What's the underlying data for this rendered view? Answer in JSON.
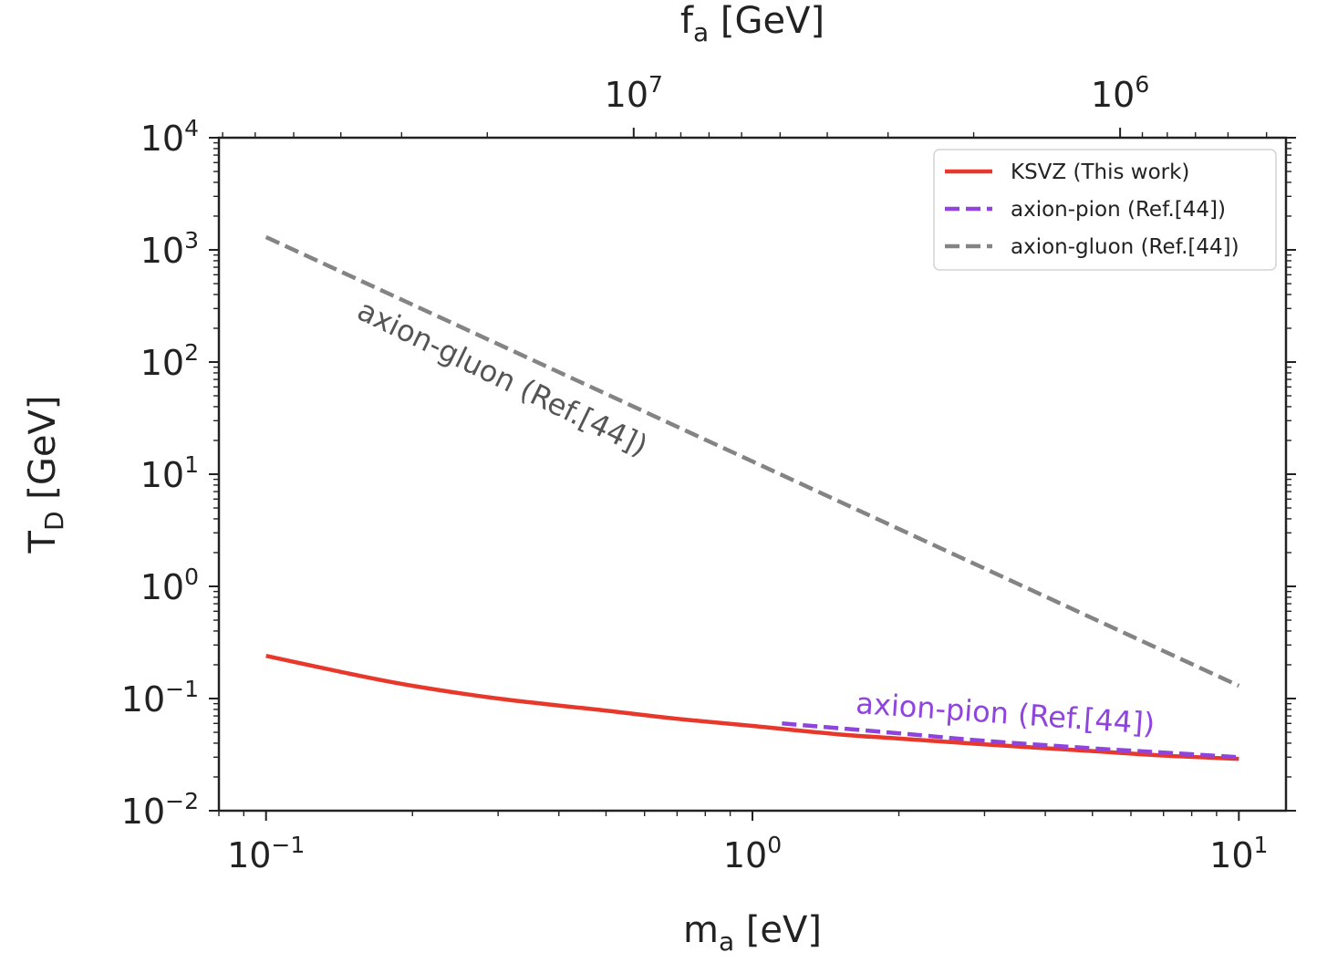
{
  "chart_data": {
    "type": "line",
    "xscale": "log",
    "yscale": "log",
    "xlabel": {
      "base": "m",
      "sub": "a",
      "rest": " [eV]"
    },
    "ylabel": {
      "base": "T",
      "sub": "D",
      "rest": " [GeV]"
    },
    "top_xlabel": {
      "base": "f",
      "sub": "a",
      "rest": " [GeV]"
    },
    "xlim": [
      0.08,
      12.5
    ],
    "ylim": [
      0.01,
      10000
    ],
    "x_ticks": [
      {
        "value": 0.1,
        "base": "10",
        "exp": "−1"
      },
      {
        "value": 1,
        "base": "10",
        "exp": "0"
      },
      {
        "value": 10,
        "base": "10",
        "exp": "1"
      }
    ],
    "y_ticks": [
      {
        "value": 0.01,
        "base": "10",
        "exp": "−2"
      },
      {
        "value": 0.1,
        "base": "10",
        "exp": "−1"
      },
      {
        "value": 1,
        "base": "10",
        "exp": "0"
      },
      {
        "value": 10,
        "base": "10",
        "exp": "1"
      },
      {
        "value": 100,
        "base": "10",
        "exp": "2"
      },
      {
        "value": 1000,
        "base": "10",
        "exp": "3"
      },
      {
        "value": 10000,
        "base": "10",
        "exp": "4"
      }
    ],
    "top_ticks": [
      {
        "fa": 10000000,
        "base": "10",
        "exp": "7"
      },
      {
        "fa": 1000000,
        "base": "10",
        "exp": "6"
      }
    ],
    "fa_times_ma": 5700000,
    "series": [
      {
        "name": "KSVZ (This work)",
        "color": "#e8382b",
        "dash": "solid",
        "x": [
          0.1,
          0.15,
          0.2,
          0.3,
          0.5,
          0.7,
          1.0,
          1.5,
          2,
          3,
          5,
          7,
          10
        ],
        "y": [
          0.24,
          0.165,
          0.13,
          0.1,
          0.078,
          0.066,
          0.057,
          0.048,
          0.044,
          0.039,
          0.034,
          0.031,
          0.029
        ]
      },
      {
        "name": "axion-pion (Ref.[44])",
        "color": "#8e44dd",
        "dash": "dashed",
        "x": [
          1.15,
          2,
          3,
          5,
          7,
          10
        ],
        "y": [
          0.06,
          0.049,
          0.042,
          0.036,
          0.033,
          0.03
        ]
      },
      {
        "name": "axion-gluon (Ref.[44])",
        "color": "#848484",
        "dash": "dashed",
        "x": [
          0.1,
          10
        ],
        "y": [
          1300,
          0.13
        ]
      }
    ],
    "annotations": [
      {
        "text": "axion-gluon (Ref.[44])",
        "color": "#555555",
        "x": 0.3,
        "y": 60,
        "angle": 26
      },
      {
        "text": "axion-pion (Ref.[44])",
        "color": "#8e44dd",
        "x": 3.3,
        "y": 0.06,
        "angle": 4
      }
    ],
    "legend": {
      "position": "top-right"
    }
  }
}
